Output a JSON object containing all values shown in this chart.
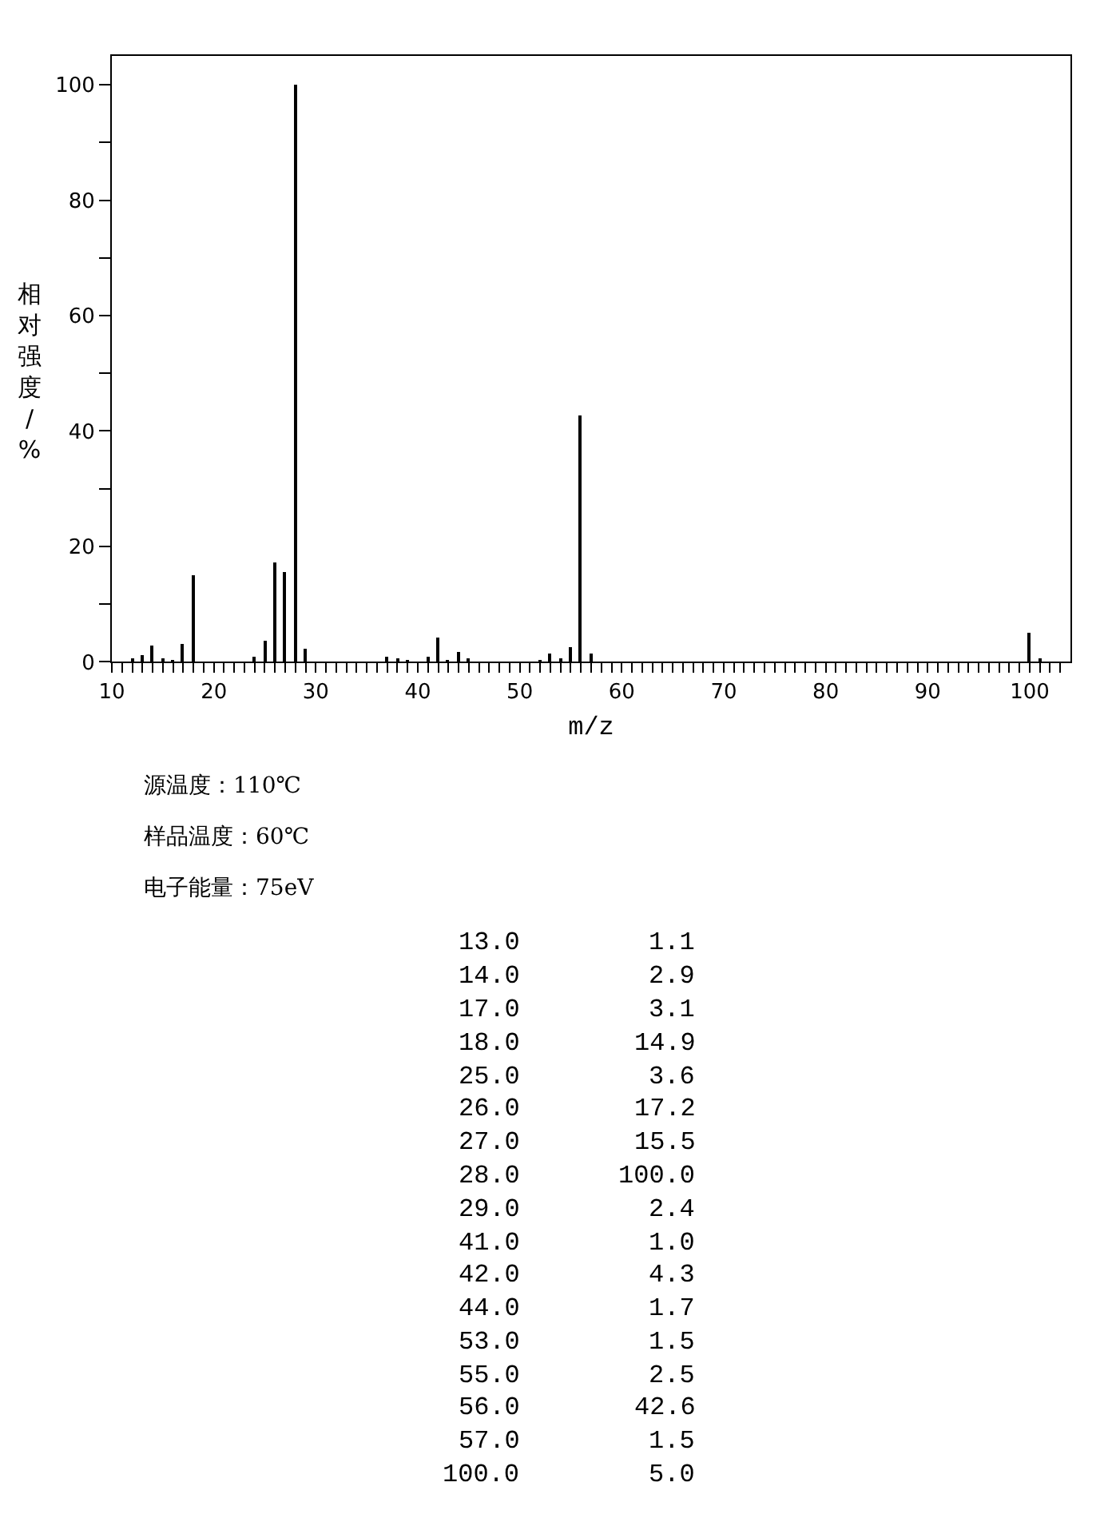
{
  "chart_data": [
    {
      "type": "bar",
      "xlabel": "m/z",
      "ylabel": "相对强度/%",
      "x": [
        12,
        13,
        14,
        15,
        16,
        17,
        18,
        24,
        25,
        26,
        27,
        28,
        29,
        37,
        38,
        39,
        41,
        42,
        43,
        44,
        45,
        52,
        53,
        54,
        55,
        56,
        57,
        100,
        101
      ],
      "values": [
        0.6,
        1.1,
        2.9,
        0.6,
        0.3,
        3.1,
        14.9,
        0.8,
        3.6,
        17.2,
        15.5,
        100.0,
        2.4,
        0.9,
        0.6,
        0.4,
        1.0,
        4.3,
        0.4,
        1.7,
        0.6,
        0.3,
        1.5,
        0.7,
        2.5,
        42.6,
        1.5,
        5.0,
        0.5
      ],
      "color": "#000000",
      "xlim": [
        10,
        104
      ],
      "ylim": [
        0,
        105
      ],
      "xticks": [
        10,
        {
          "value": 11,
          "label": null
        },
        {
          "value": 12,
          "label": null
        },
        {
          "value": 13,
          "label": null
        },
        {
          "value": 14,
          "label": null
        },
        {
          "value": 15,
          "label": null
        },
        {
          "value": 16,
          "label": null
        },
        {
          "value": 17,
          "label": null
        },
        {
          "value": 18,
          "label": null
        },
        {
          "value": 19,
          "label": null
        },
        20,
        {
          "value": 21,
          "label": null
        },
        {
          "value": 22,
          "label": null
        },
        {
          "value": 23,
          "label": null
        },
        {
          "value": 24,
          "label": null
        },
        {
          "value": 25,
          "label": null
        },
        {
          "value": 26,
          "label": null
        },
        {
          "value": 27,
          "label": null
        },
        {
          "value": 28,
          "label": null
        },
        {
          "value": 29,
          "label": null
        },
        30,
        {
          "value": 31,
          "label": null
        },
        {
          "value": 32,
          "label": null
        },
        {
          "value": 33,
          "label": null
        },
        {
          "value": 34,
          "label": null
        },
        {
          "value": 35,
          "label": null
        },
        {
          "value": 36,
          "label": null
        },
        {
          "value": 37,
          "label": null
        },
        {
          "value": 38,
          "label": null
        },
        {
          "value": 39,
          "label": null
        },
        40,
        {
          "value": 41,
          "label": null
        },
        {
          "value": 42,
          "label": null
        },
        {
          "value": 43,
          "label": null
        },
        {
          "value": 44,
          "label": null
        },
        {
          "value": 45,
          "label": null
        },
        {
          "value": 46,
          "label": null
        },
        {
          "value": 47,
          "label": null
        },
        {
          "value": 48,
          "label": null
        },
        {
          "value": 49,
          "label": null
        },
        50,
        {
          "value": 51,
          "label": null
        },
        {
          "value": 52,
          "label": null
        },
        {
          "value": 53,
          "label": null
        },
        {
          "value": 54,
          "label": null
        },
        {
          "value": 55,
          "label": null
        },
        {
          "value": 56,
          "label": null
        },
        {
          "value": 57,
          "label": null
        },
        {
          "value": 58,
          "label": null
        },
        {
          "value": 59,
          "label": null
        },
        60,
        {
          "value": 61,
          "label": null
        },
        {
          "value": 62,
          "label": null
        },
        {
          "value": 63,
          "label": null
        },
        {
          "value": 64,
          "label": null
        },
        {
          "value": 65,
          "label": null
        },
        {
          "value": 66,
          "label": null
        },
        {
          "value": 67,
          "label": null
        },
        {
          "value": 68,
          "label": null
        },
        {
          "value": 69,
          "label": null
        },
        70,
        {
          "value": 71,
          "label": null
        },
        {
          "value": 72,
          "label": null
        },
        {
          "value": 73,
          "label": null
        },
        {
          "value": 74,
          "label": null
        },
        {
          "value": 75,
          "label": null
        },
        {
          "value": 76,
          "label": null
        },
        {
          "value": 77,
          "label": null
        },
        {
          "value": 78,
          "label": null
        },
        {
          "value": 79,
          "label": null
        },
        80,
        {
          "value": 81,
          "label": null
        },
        {
          "value": 82,
          "label": null
        },
        {
          "value": 83,
          "label": null
        },
        {
          "value": 84,
          "label": null
        },
        {
          "value": 85,
          "label": null
        },
        {
          "value": 86,
          "label": null
        },
        {
          "value": 87,
          "label": null
        },
        {
          "value": 88,
          "label": null
        },
        {
          "value": 89,
          "label": null
        },
        90,
        {
          "value": 91,
          "label": null
        },
        {
          "value": 92,
          "label": null
        },
        {
          "value": 93,
          "label": null
        },
        {
          "value": 94,
          "label": null
        },
        {
          "value": 95,
          "label": null
        },
        {
          "value": 96,
          "label": null
        },
        {
          "value": 97,
          "label": null
        },
        {
          "value": 98,
          "label": null
        },
        {
          "value": 99,
          "label": null
        },
        100,
        {
          "value": 101,
          "label": null
        },
        {
          "value": 102,
          "label": null
        },
        {
          "value": 103,
          "label": null
        }
      ],
      "yticks": [
        0,
        {
          "value": 10,
          "label": null
        },
        20,
        {
          "value": 30,
          "label": null
        },
        40,
        {
          "value": 50,
          "label": null
        },
        60,
        {
          "value": 70,
          "label": null
        },
        80,
        {
          "value": 90,
          "label": null
        },
        100
      ],
      "annotations": [
        "源温度：110℃",
        "样品温度：60℃",
        "电子能量：75eV"
      ]
    },
    {
      "type": "other",
      "annotations": [
        "13.0 1.1",
        "14.0 2.9",
        "17.0 3.1",
        "18.0 14.9",
        "25.0 3.6",
        "26.0 17.2",
        "27.0 15.5",
        "28.0 100.0",
        "29.0 2.4",
        "41.0 1.0",
        "42.0 4.3",
        "44.0 1.7",
        "53.0 1.5",
        "55.0 2.5",
        "56.0 42.6",
        "57.0 1.5",
        "100.0 5.0"
      ]
    }
  ]
}
